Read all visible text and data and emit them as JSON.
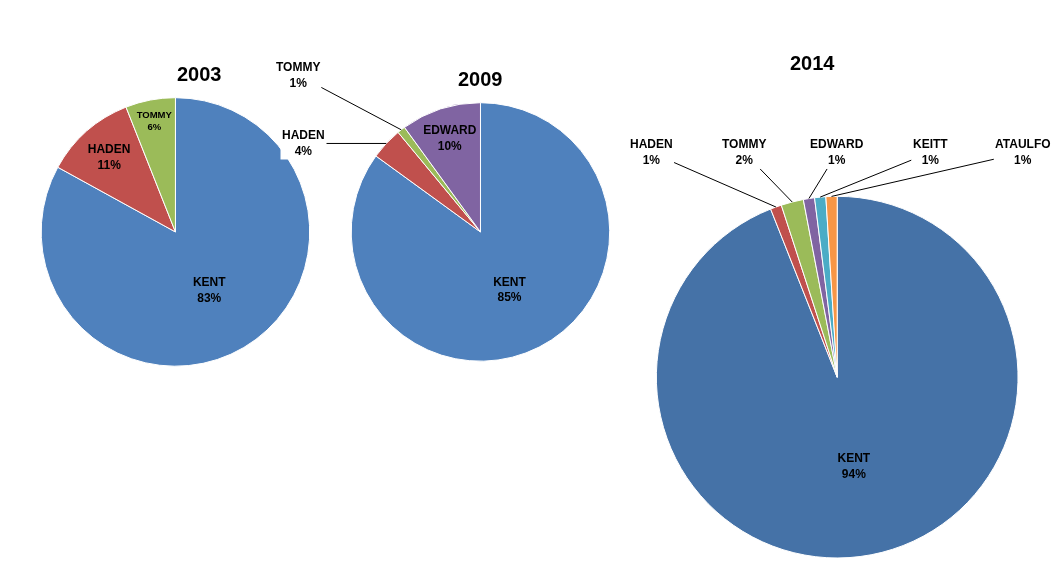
{
  "chart_data": [
    {
      "type": "pie",
      "title": "2003",
      "categories": [
        "KENT",
        "HADEN",
        "TOMMY"
      ],
      "values": [
        83,
        11,
        6
      ],
      "value_labels": [
        "83%",
        "11%",
        "6%"
      ],
      "colors": [
        "#4f81bd",
        "#c0504d",
        "#9bbb59"
      ],
      "data_labels": true
    },
    {
      "type": "pie",
      "title": "2009",
      "categories": [
        "KENT",
        "HADEN",
        "TOMMY",
        "EDWARD"
      ],
      "values": [
        85,
        4,
        1,
        10
      ],
      "value_labels": [
        "85%",
        "4%",
        "1%",
        "10%"
      ],
      "colors": [
        "#4f81bd",
        "#c0504d",
        "#9bbb59",
        "#8064a2"
      ],
      "data_labels": true
    },
    {
      "type": "pie",
      "title": "2014",
      "categories": [
        "KENT",
        "HADEN",
        "TOMMY",
        "EDWARD",
        "KEITT",
        "ATAULFO"
      ],
      "values": [
        94,
        1,
        2,
        1,
        1,
        1
      ],
      "value_labels": [
        "94%",
        "1%",
        "2%",
        "1%",
        "1%",
        "1%"
      ],
      "colors": [
        "#4572a7",
        "#c0504d",
        "#9bbb59",
        "#8064a2",
        "#4bacc6",
        "#f79646"
      ],
      "data_labels": true
    }
  ]
}
